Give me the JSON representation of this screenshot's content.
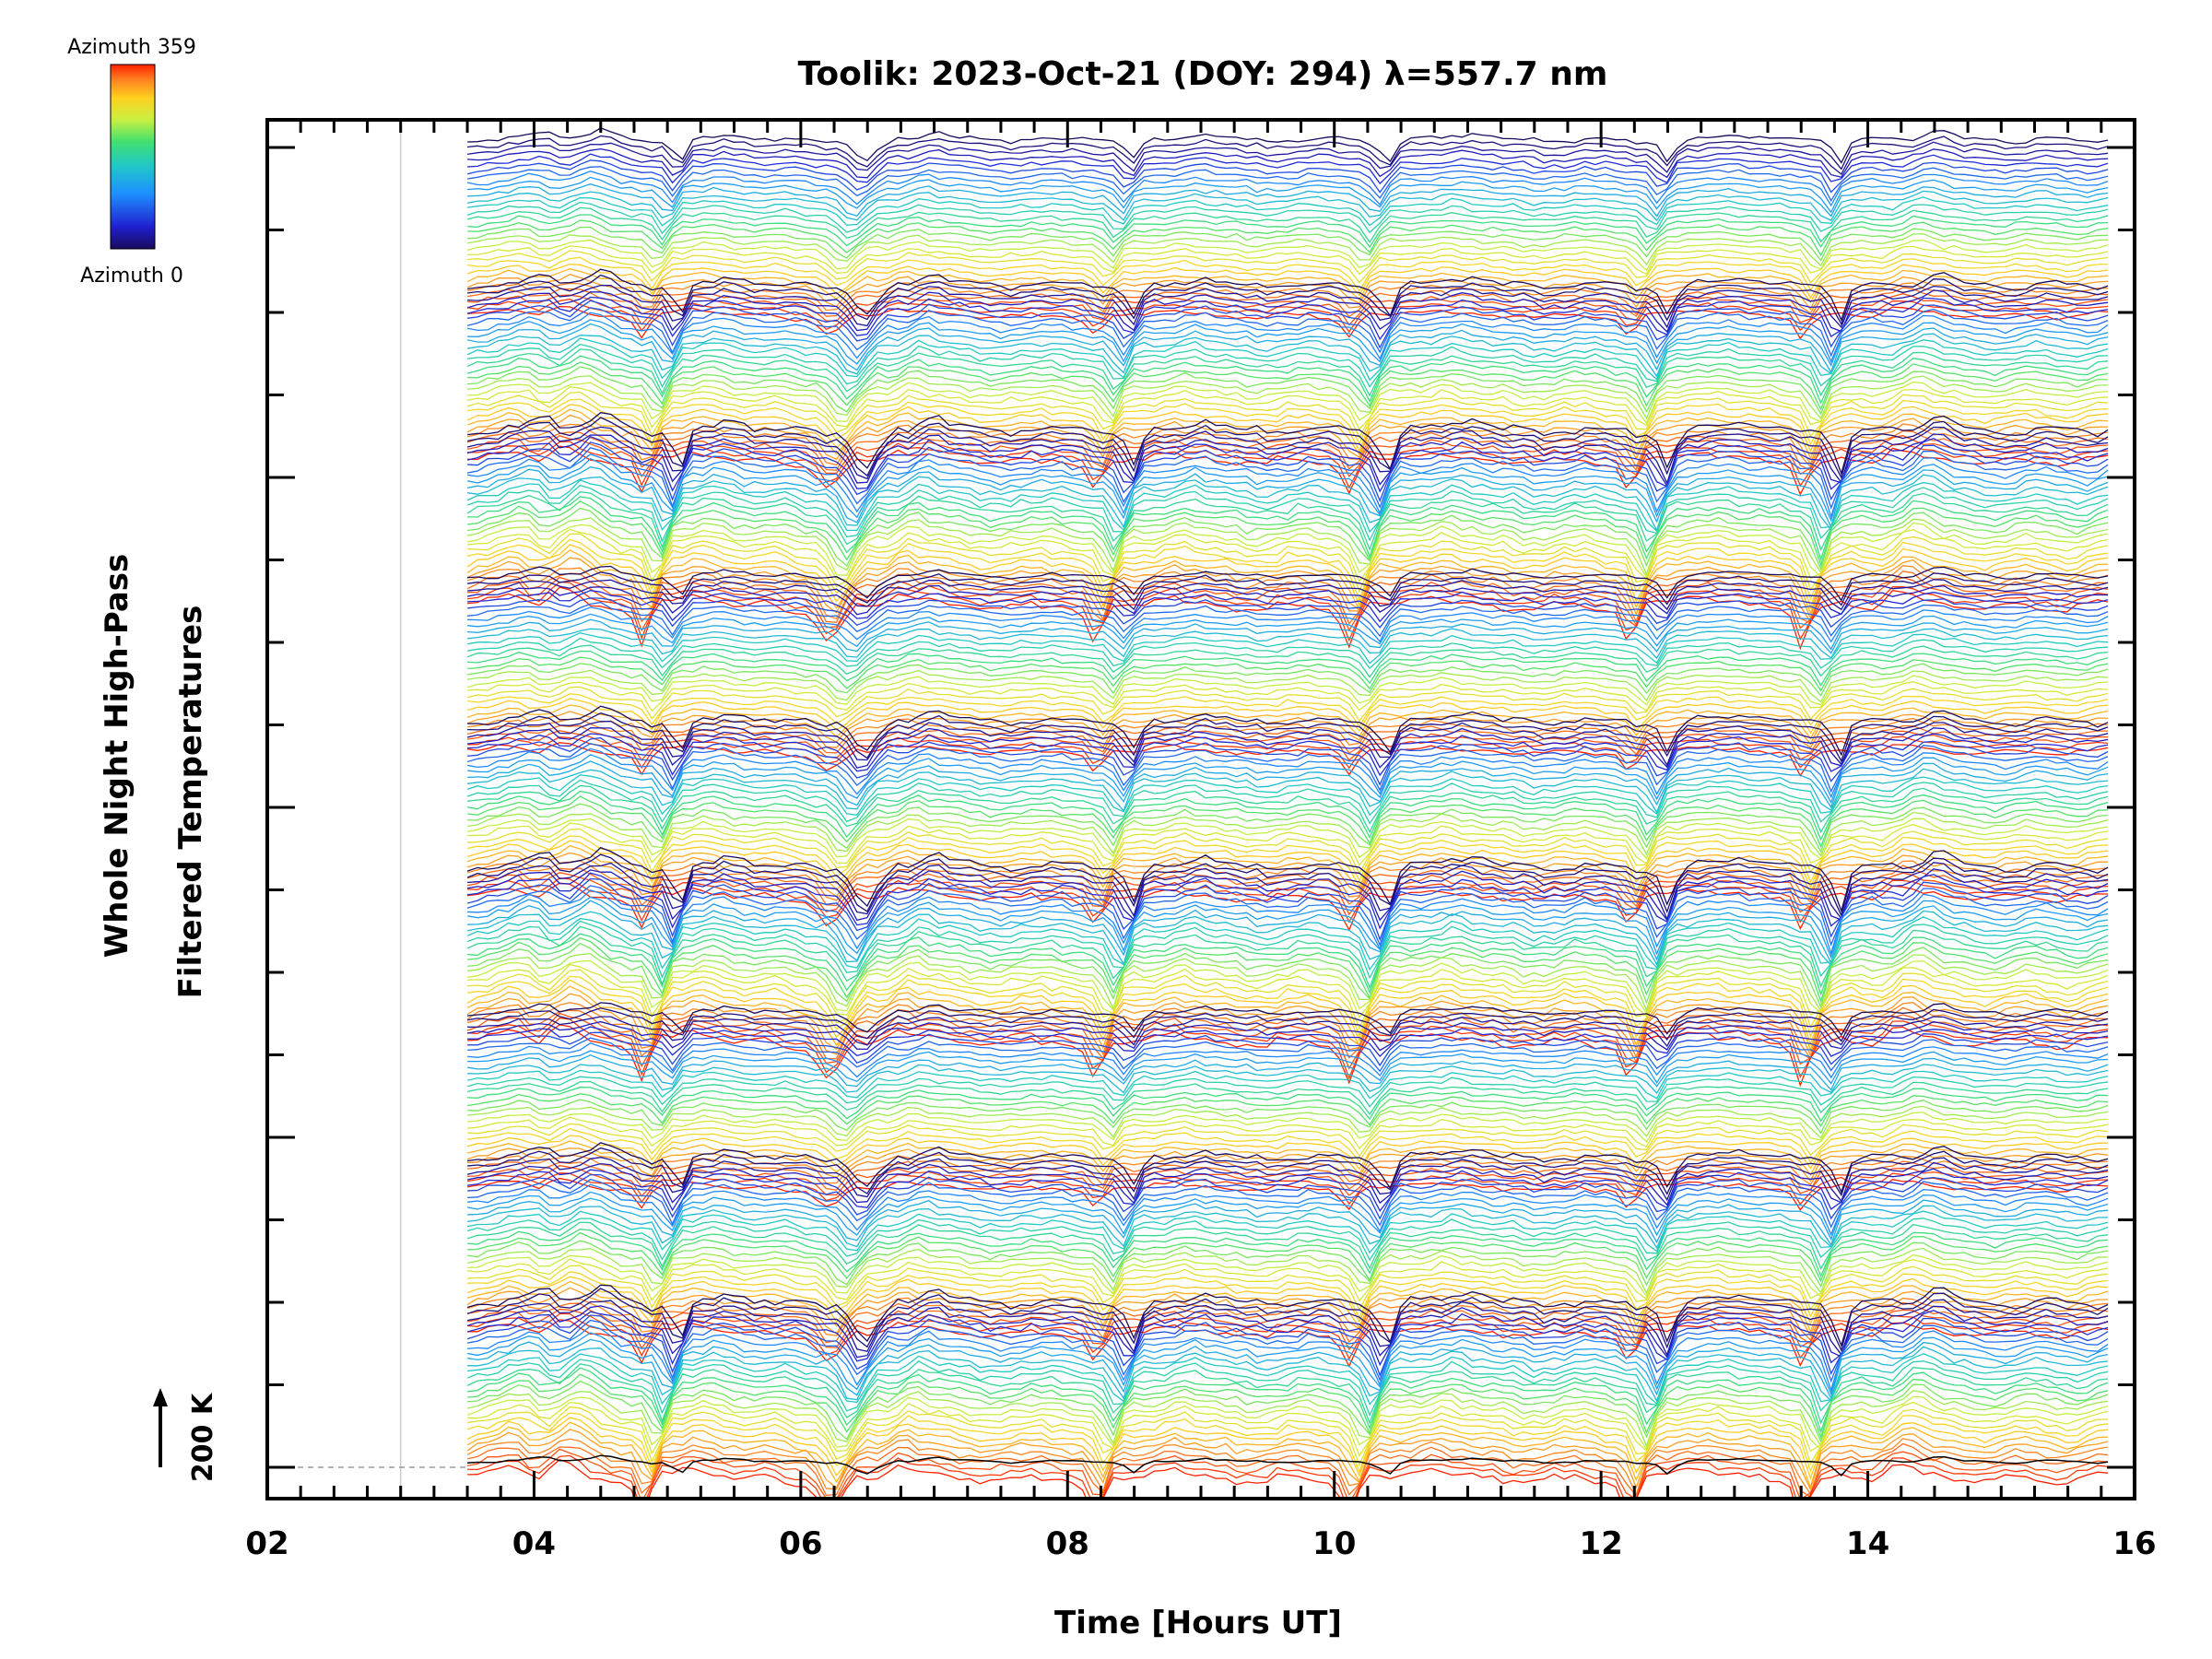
{
  "chart_data": {
    "type": "line",
    "title": "Toolik: 2023-Oct-21 (DOY: 294) λ=557.7 nm",
    "xlabel": "Time [Hours UT]",
    "ylabel_lines": [
      "Whole Night High-Pass",
      "Filtered Temperatures"
    ],
    "xlim": [
      2,
      16
    ],
    "x_tick_labels": [
      "02",
      "04",
      "06",
      "08",
      "10",
      "12",
      "14",
      "16"
    ],
    "y_ticks_count": 16,
    "scale_bar_label": "200 K",
    "data_x_range": [
      3.5,
      15.8
    ],
    "stacked_bands": 9,
    "traces_per_band": 30,
    "common_dip_times_ut": [
      5.1,
      6.5,
      8.5,
      10.4,
      12.5,
      13.8
    ],
    "colorbar": {
      "top_label": "Azimuth  359",
      "bottom_label": "Azimuth  0",
      "colormap": "rainbow",
      "colors": [
        "#1a0a5c",
        "#2020d0",
        "#1e90ff",
        "#20c8c8",
        "#40e070",
        "#c8f040",
        "#ffd020",
        "#ff8020",
        "#ff2000"
      ]
    }
  }
}
